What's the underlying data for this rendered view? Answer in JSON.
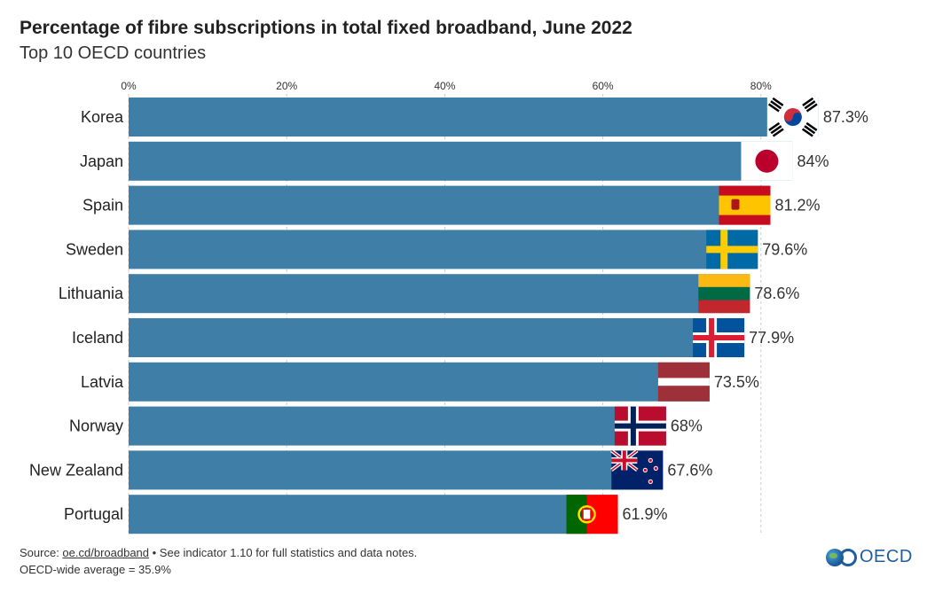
{
  "title": "Percentage of fibre subscriptions in total fixed broadband, June 2022",
  "subtitle": "Top 10 OECD countries",
  "source": {
    "prefix": "Source: ",
    "link_text": "oe.cd/broadband",
    "suffix": " • See indicator 1.10 for full statistics and data notes.",
    "average_note": "OECD-wide average = 35.9%"
  },
  "logo": {
    "text": "OECD"
  },
  "colors": {
    "bar": "#3f7ea6",
    "grid": "#cccccc",
    "text": "#222222"
  },
  "chart_data": {
    "type": "bar",
    "orientation": "horizontal",
    "categories": [
      "Korea",
      "Japan",
      "Spain",
      "Sweden",
      "Lithuania",
      "Iceland",
      "Latvia",
      "Norway",
      "New Zealand",
      "Portugal"
    ],
    "values": [
      87.3,
      84,
      81.2,
      79.6,
      78.6,
      77.9,
      73.5,
      68,
      67.6,
      61.9
    ],
    "value_labels": [
      "87.3%",
      "84%",
      "81.2%",
      "79.6%",
      "78.6%",
      "77.9%",
      "73.5%",
      "68%",
      "67.6%",
      "61.9%"
    ],
    "flags": [
      "korea-flag",
      "japan-flag",
      "spain-flag",
      "sweden-flag",
      "lithuania-flag",
      "iceland-flag",
      "latvia-flag",
      "norway-flag",
      "new-zealand-flag",
      "portugal-flag"
    ],
    "xlim": [
      0,
      100
    ],
    "x_ticks": [
      0,
      20,
      40,
      60,
      80
    ],
    "x_tick_labels": [
      "0%",
      "20%",
      "40%",
      "60%",
      "80%"
    ],
    "grid": true
  }
}
